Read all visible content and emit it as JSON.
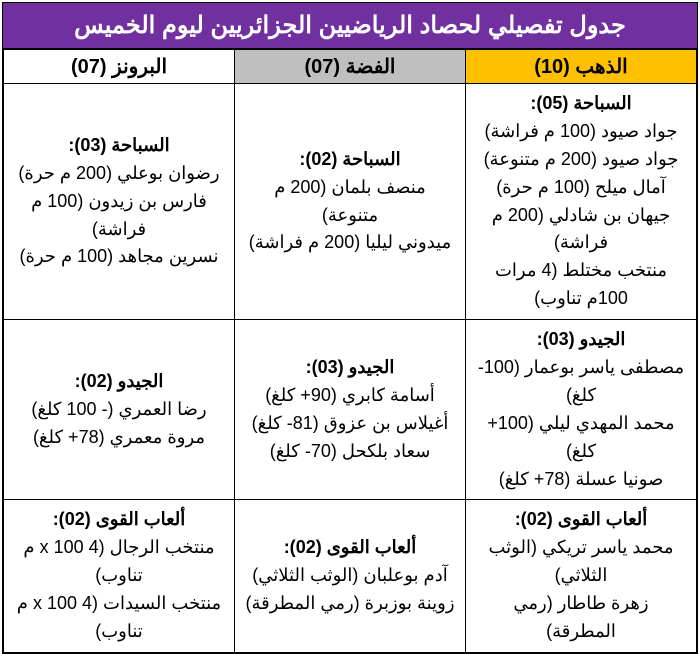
{
  "title": "جدول تفصيلي لحصاد الرياضيين الجزائريين ليوم الخميس",
  "colors": {
    "title_bg": "#7030a0",
    "title_text": "#ffffff",
    "gold_bg": "#FFC000",
    "silver_bg": "#BFBFBF",
    "bronze_bg": "#ffffff",
    "border": "#000000",
    "text": "#000000"
  },
  "typography": {
    "title_fontsize": 24,
    "header_fontsize": 20,
    "cell_fontsize": 18,
    "line_height": 1.55
  },
  "headers": {
    "gold": "الذهب (10)",
    "silver": "الفضة (07)",
    "bronze": "البرونز (07)"
  },
  "rows": [
    {
      "class": "row-swimming",
      "gold": {
        "title": "السباحة (05):",
        "items": [
          "جواد صيود (100 م فراشة)",
          "جواد صيود (200 م متنوعة)",
          "آمال ميلح (100 م حرة)",
          "جيهان بن شادلي (200 م فراشة)",
          "منتخب مختلط (4 مرات 100م تناوب)"
        ]
      },
      "silver": {
        "title": "السباحة (02):",
        "items": [
          "منصف بلمان (200 م متنوعة)",
          "ميدوني ليليا (200 م فراشة)"
        ]
      },
      "bronze": {
        "title": "السباحة (03):",
        "items": [
          "رضوان بوعلي (200 م حرة)",
          "فارس بن زيدون (100 م فراشة)",
          "نسرين مجاهد (100 م حرة)"
        ]
      }
    },
    {
      "class": "row-judo",
      "gold": {
        "title": "الجيدو (03):",
        "items": [
          "مصطفى ياسر بوعمار (100- كلغ)",
          "محمد المهدي ليلي (100+ كلغ)",
          "صونيا عسلة (78+ كلغ)"
        ]
      },
      "silver": {
        "title": "الجيدو (03):",
        "items": [
          "أسامة كابري (90+ كلغ)",
          "أغيلاس بن عزوق (81- كلغ)",
          "سعاد بلكحل (70- كلغ)"
        ]
      },
      "bronze": {
        "title": "الجيدو (02):",
        "items": [
          "رضا العمري (- 100 كلغ)",
          "مروة معمري (78+ كلغ)"
        ]
      }
    },
    {
      "class": "row-athletics",
      "gold": {
        "title": "ألعاب القوى (02):",
        "items": [
          "محمد ياسر تريكي (الوثب الثلاثي)",
          "زهرة طاطار (رمي المطرقة)"
        ]
      },
      "silver": {
        "title": "ألعاب القوى (02):",
        "items": [
          "آدم بوعلبان (الوثب الثلاثي)",
          "زوينة بوزبرة (رمي المطرقة)"
        ]
      },
      "bronze": {
        "title": "ألعاب القوى (02):",
        "items": [
          "منتخب الرجال (4 x 100 م تناوب)",
          "منتخب السيدات (4 x 100 م تناوب)"
        ]
      }
    }
  ]
}
